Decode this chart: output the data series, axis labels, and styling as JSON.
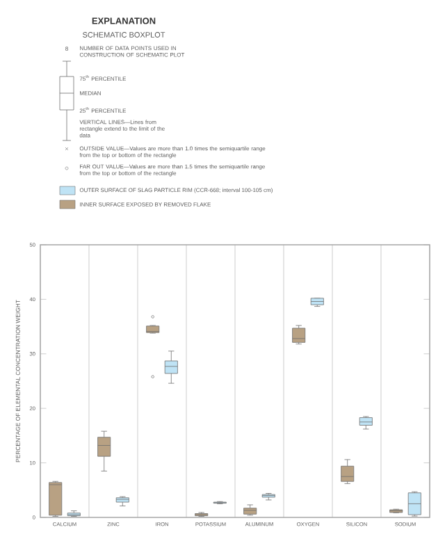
{
  "chart_data": {
    "type": "box",
    "title": "EXPLANATION",
    "subtitle": "SCHEMATIC BOXPLOT",
    "ylabel": "PERCENTAGE OF ELEMENTAL CONCENTRATION WEIGHT",
    "categories": [
      "CALCIUM",
      "ZINC",
      "IRON",
      "POTASSIUM",
      "ALUMINUM",
      "OXYGEN",
      "SILICON",
      "SODIUM"
    ],
    "ylim": [
      0,
      50
    ],
    "yticks": [
      0,
      10,
      20,
      30,
      40,
      50
    ],
    "grid": "x",
    "legend": "top",
    "annotations": [
      "8",
      "NUMBER OF DATA POINTS USED IN CONSTRUCTION OF SCHEMATIC PLOT",
      "75$^{th}$ PERCENTILE",
      "MEDIAN",
      "25$^{th}$ PERCENTILE",
      "VERTICAL LINES—Lines from rectangle extend to the limit of the data",
      "OUTSIDE VALUE—Values are more than 1.0 times the semiquartile range from the top or bottom of the rectangle",
      "FAR OUT VALUE—Values are more than 1.5 times the semiquartile range from the top or bottom of the rectangle"
    ],
    "series": [
      {
        "name": "INNER SURFACE EXPOSED BY REMOVED FLAKE",
        "color": "#b8a183",
        "boxes": [
          {
            "low": 0.2,
            "q1": 0.4,
            "median": 6.0,
            "q3": 6.4,
            "high": 6.6
          },
          {
            "low": 8.5,
            "q1": 11.2,
            "median": 13.2,
            "q3": 14.7,
            "high": 15.8
          },
          {
            "low": 33.8,
            "q1": 33.9,
            "median": 34.1,
            "q3": 35.1,
            "high": 35.2,
            "outliers": [
              36.8,
              25.8
            ]
          },
          {
            "low": 0.2,
            "q1": 0.3,
            "median": 0.5,
            "q3": 0.7,
            "high": 0.9
          },
          {
            "low": 0.4,
            "q1": 0.6,
            "median": 1.3,
            "q3": 1.7,
            "high": 2.3
          },
          {
            "low": 31.8,
            "q1": 32.1,
            "median": 32.8,
            "q3": 34.7,
            "high": 35.2
          },
          {
            "low": 6.2,
            "q1": 6.6,
            "median": 7.5,
            "q3": 9.4,
            "high": 10.6
          },
          {
            "low": 0.85,
            "q1": 0.9,
            "median": 1.2,
            "q3": 1.4,
            "high": 1.5
          }
        ]
      },
      {
        "name": "OUTER SURFACE OF SLAG PARTICLE RIM (CCR-668; interval 100-105 cm)",
        "color": "#bfe3f5",
        "boxes": [
          {
            "low": 0.2,
            "q1": 0.3,
            "median": 0.5,
            "q3": 0.8,
            "high": 1.2
          },
          {
            "low": 2.1,
            "q1": 2.8,
            "median": 3.3,
            "q3": 3.6,
            "high": 3.8
          },
          {
            "low": 24.6,
            "q1": 26.4,
            "median": 27.7,
            "q3": 28.7,
            "high": 30.5
          },
          {
            "low": 2.5,
            "q1": 2.6,
            "median": 2.7,
            "q3": 2.8,
            "high": 2.9
          },
          {
            "low": 3.2,
            "q1": 3.7,
            "median": 4.0,
            "q3": 4.2,
            "high": 4.4
          },
          {
            "low": 38.7,
            "q1": 39.0,
            "median": 39.6,
            "q3": 40.2,
            "high": 40.2
          },
          {
            "low": 16.2,
            "q1": 16.9,
            "median": 17.5,
            "q3": 18.3,
            "high": 18.5
          },
          {
            "low": 0.25,
            "q1": 0.5,
            "median": 2.5,
            "q3": 4.5,
            "high": 4.7
          }
        ]
      }
    ]
  }
}
